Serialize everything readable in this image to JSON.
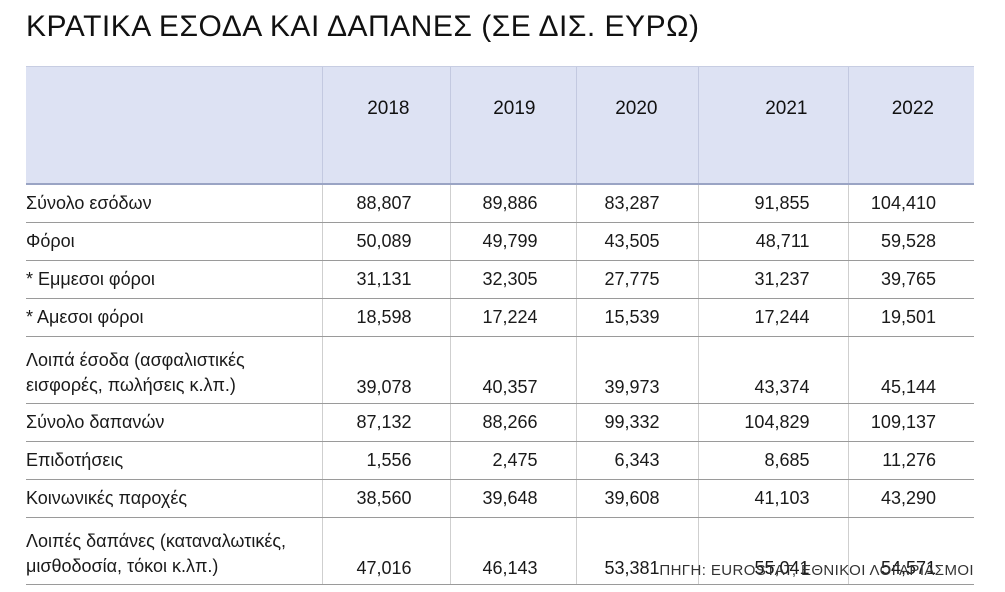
{
  "title": "ΚΡΑΤΙΚΑ ΕΣΟΔΑ ΚΑΙ ΔΑΠΑΝΕΣ (ΣΕ ΔΙΣ. ΕΥΡΩ)",
  "table": {
    "years": [
      "2018",
      "2019",
      "2020",
      "2021",
      "2022"
    ],
    "rows": [
      {
        "label": "Σύνολο εσόδων",
        "values": [
          "88,807",
          "89,886",
          "83,287",
          "91,855",
          "104,410"
        ]
      },
      {
        "label": "Φόροι",
        "values": [
          "50,089",
          "49,799",
          "43,505",
          "48,711",
          "59,528"
        ]
      },
      {
        "label": "* Εμμεσοι φόροι",
        "values": [
          "31,131",
          "32,305",
          "27,775",
          "31,237",
          "39,765"
        ]
      },
      {
        "label": "* Αμεσοι φόροι",
        "values": [
          "18,598",
          "17,224",
          "15,539",
          "17,244",
          "19,501"
        ]
      },
      {
        "label": "Λοιπά έσοδα (ασφαλιστικές εισφορές, πωλήσεις κ.λπ.)",
        "values": [
          "39,078",
          "40,357",
          "39,973",
          "43,374",
          "45,144"
        ]
      },
      {
        "label": "Σύνολο δαπανών",
        "values": [
          "87,132",
          "88,266",
          "99,332",
          "104,829",
          "109,137"
        ]
      },
      {
        "label": "Επιδοτήσεις",
        "values": [
          "1,556",
          "2,475",
          "6,343",
          "8,685",
          "11,276"
        ]
      },
      {
        "label": "Κοινωνικές παροχές",
        "values": [
          "38,560",
          "39,648",
          "39,608",
          "41,103",
          "43,290"
        ]
      },
      {
        "label": "Λοιπές δαπάνες (καταναλωτικές, μισθοδοσία, τόκοι κ.λπ.)",
        "values": [
          "47,016",
          "46,143",
          "53,381",
          "55,041",
          "54,571"
        ]
      }
    ]
  },
  "source": "ΠΗΓΗ: EUROSTAT, ΕΘΝΙΚΟΙ ΛΟΓΑΡΙΑΣΜΟΙ",
  "colors": {
    "header_bg": "#dde2f3",
    "row_border": "#9a9a9a"
  }
}
